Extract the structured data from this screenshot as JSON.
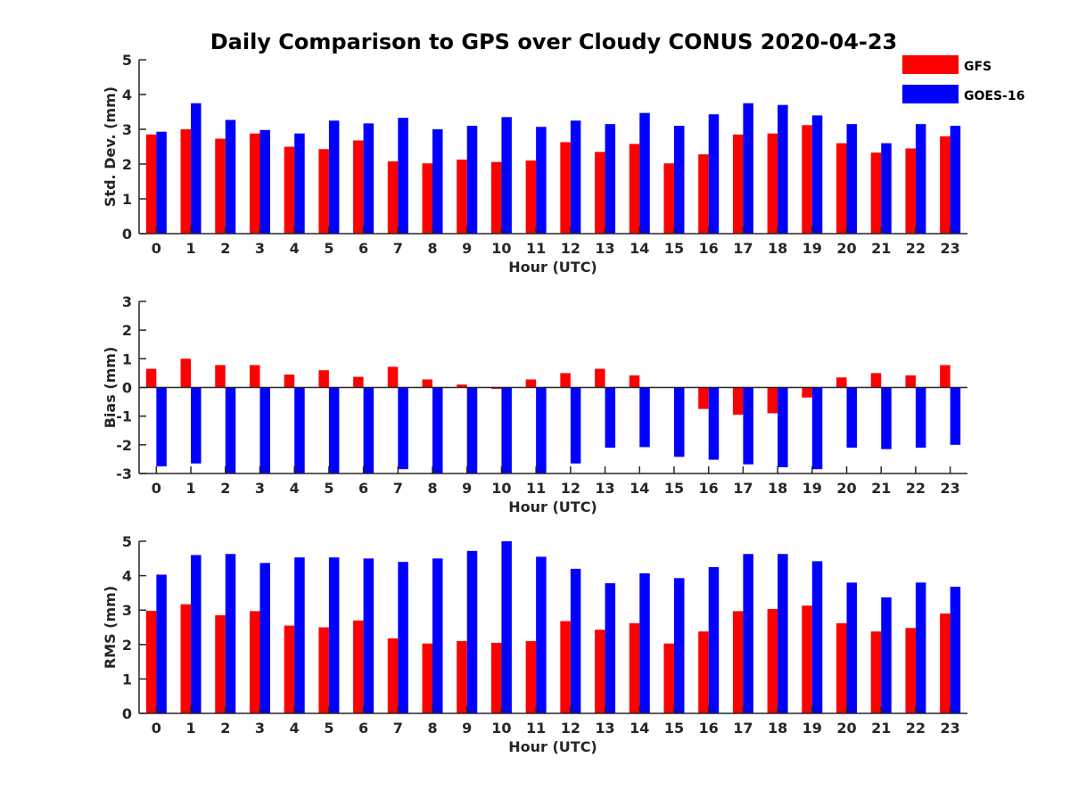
{
  "chart_data": {
    "title": "Daily Comparison to GPS over Cloudy CONUS 2020-04-23",
    "legend": {
      "placement": "top-right",
      "entries": [
        {
          "name": "GFS",
          "color": "#ff0000"
        },
        {
          "name": "GOES-16",
          "color": "#0000ff"
        }
      ]
    },
    "charts": [
      {
        "type": "bar",
        "xlabel": "Hour (UTC)",
        "ylabel": "Std. Dev. (mm)",
        "ylim": [
          0,
          5
        ],
        "yticks": [
          "0",
          "1",
          "2",
          "3",
          "4",
          "5"
        ],
        "categories": [
          "0",
          "1",
          "2",
          "3",
          "4",
          "5",
          "6",
          "7",
          "8",
          "9",
          "10",
          "11",
          "12",
          "13",
          "14",
          "15",
          "16",
          "17",
          "18",
          "19",
          "20",
          "21",
          "22",
          "23"
        ],
        "series": [
          {
            "name": "GFS",
            "color": "#ff0000",
            "values": [
              2.85,
              3.0,
              2.73,
              2.88,
              2.5,
              2.43,
              2.68,
              2.08,
              2.02,
              2.13,
              2.06,
              2.1,
              2.63,
              2.35,
              2.58,
              2.02,
              2.28,
              2.85,
              2.88,
              3.12,
              2.6,
              2.33,
              2.45,
              2.8
            ]
          },
          {
            "name": "GOES-16",
            "color": "#0000ff",
            "values": [
              2.93,
              3.75,
              3.27,
              2.98,
              2.88,
              3.25,
              3.17,
              3.33,
              3.0,
              3.1,
              3.35,
              3.07,
              3.25,
              3.15,
              3.47,
              3.1,
              3.43,
              3.75,
              3.7,
              3.4,
              3.15,
              2.6,
              3.15,
              3.1
            ]
          }
        ]
      },
      {
        "type": "bar",
        "xlabel": "Hour (UTC)",
        "ylabel": "Bias (mm)",
        "ylim": [
          -3,
          3
        ],
        "yticks": [
          "-3",
          "-2",
          "-1",
          "0",
          "1",
          "2",
          "3"
        ],
        "categories": [
          "0",
          "1",
          "2",
          "3",
          "4",
          "5",
          "6",
          "7",
          "8",
          "9",
          "10",
          "11",
          "12",
          "13",
          "14",
          "15",
          "16",
          "17",
          "18",
          "19",
          "20",
          "21",
          "22",
          "23"
        ],
        "series": [
          {
            "name": "GFS",
            "color": "#ff0000",
            "values": [
              0.65,
              1.0,
              0.78,
              0.78,
              0.45,
              0.6,
              0.37,
              0.72,
              0.28,
              0.1,
              -0.05,
              0.28,
              0.5,
              0.65,
              0.42,
              0.0,
              -0.75,
              -0.95,
              -0.9,
              -0.35,
              0.35,
              0.5,
              0.42,
              0.78
            ]
          },
          {
            "name": "GOES-16",
            "color": "#0000ff",
            "values": [
              -2.75,
              -2.65,
              -3.0,
              -3.0,
              -3.0,
              -3.0,
              -3.0,
              -2.85,
              -3.0,
              -3.0,
              -3.0,
              -3.0,
              -2.65,
              -2.1,
              -2.08,
              -2.42,
              -2.52,
              -2.68,
              -2.78,
              -2.85,
              -2.1,
              -2.15,
              -2.1,
              -2.0
            ]
          }
        ]
      },
      {
        "type": "bar",
        "xlabel": "Hour (UTC)",
        "ylabel": "RMS (mm)",
        "ylim": [
          0,
          5
        ],
        "yticks": [
          "0",
          "1",
          "2",
          "3",
          "4",
          "5"
        ],
        "categories": [
          "0",
          "1",
          "2",
          "3",
          "4",
          "5",
          "6",
          "7",
          "8",
          "9",
          "10",
          "11",
          "12",
          "13",
          "14",
          "15",
          "16",
          "17",
          "18",
          "19",
          "20",
          "21",
          "22",
          "23"
        ],
        "series": [
          {
            "name": "GFS",
            "color": "#ff0000",
            "values": [
              2.98,
              3.17,
              2.85,
              2.97,
              2.55,
              2.5,
              2.7,
              2.18,
              2.03,
              2.1,
              2.05,
              2.1,
              2.68,
              2.43,
              2.62,
              2.03,
              2.38,
              2.97,
              3.03,
              3.13,
              2.62,
              2.38,
              2.48,
              2.9
            ]
          },
          {
            "name": "GOES-16",
            "color": "#0000ff",
            "values": [
              4.03,
              4.6,
              4.63,
              4.37,
              4.53,
              4.53,
              4.5,
              4.4,
              4.5,
              4.72,
              5.0,
              4.55,
              4.2,
              3.78,
              4.07,
              3.93,
              4.25,
              4.63,
              4.63,
              4.42,
              3.8,
              3.37,
              3.8,
              3.68
            ]
          }
        ]
      }
    ]
  }
}
